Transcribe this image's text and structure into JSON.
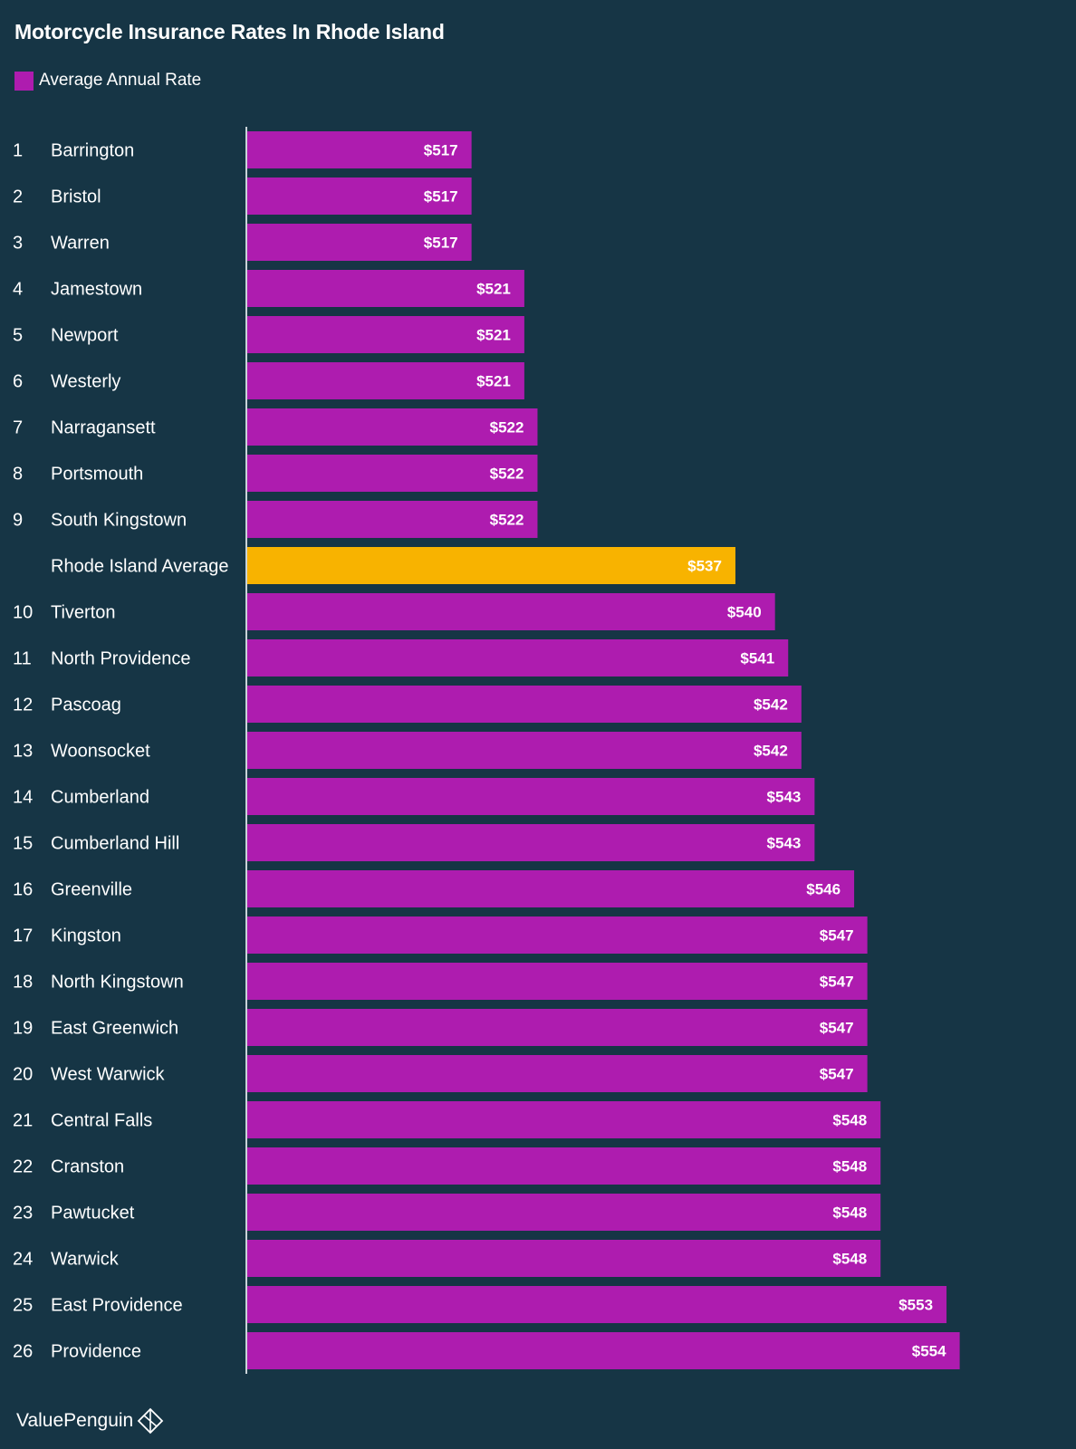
{
  "colors": {
    "background": "#163545",
    "bar": "#AE1CAF",
    "average_bar": "#F8B300",
    "text": "#FFFFFF",
    "axis": "#C9D3D8"
  },
  "legend": {
    "label": "Average Annual Rate"
  },
  "brand": {
    "name": "ValuePenguin",
    "icon": "penguin-diamond-icon"
  },
  "chart_data": {
    "type": "bar",
    "orientation": "horizontal",
    "title": "Motorcycle Insurance Rates In Rhode Island",
    "series_name": "Average Annual Rate",
    "xlim": [
      500,
      560
    ],
    "grid": false,
    "rows": [
      {
        "rank": "1",
        "city": "Barrington",
        "value": 517,
        "label": "$517",
        "highlight": false
      },
      {
        "rank": "2",
        "city": "Bristol",
        "value": 517,
        "label": "$517",
        "highlight": false
      },
      {
        "rank": "3",
        "city": "Warren",
        "value": 517,
        "label": "$517",
        "highlight": false
      },
      {
        "rank": "4",
        "city": "Jamestown",
        "value": 521,
        "label": "$521",
        "highlight": false
      },
      {
        "rank": "5",
        "city": "Newport",
        "value": 521,
        "label": "$521",
        "highlight": false
      },
      {
        "rank": "6",
        "city": "Westerly",
        "value": 521,
        "label": "$521",
        "highlight": false
      },
      {
        "rank": "7",
        "city": "Narragansett",
        "value": 522,
        "label": "$522",
        "highlight": false
      },
      {
        "rank": "8",
        "city": "Portsmouth",
        "value": 522,
        "label": "$522",
        "highlight": false
      },
      {
        "rank": "9",
        "city": "South Kingstown",
        "value": 522,
        "label": "$522",
        "highlight": false
      },
      {
        "rank": "",
        "city": "Rhode Island Average",
        "value": 537,
        "label": "$537",
        "highlight": true
      },
      {
        "rank": "10",
        "city": "Tiverton",
        "value": 540,
        "label": "$540",
        "highlight": false
      },
      {
        "rank": "11",
        "city": "North Providence",
        "value": 541,
        "label": "$541",
        "highlight": false
      },
      {
        "rank": "12",
        "city": "Pascoag",
        "value": 542,
        "label": "$542",
        "highlight": false
      },
      {
        "rank": "13",
        "city": "Woonsocket",
        "value": 542,
        "label": "$542",
        "highlight": false
      },
      {
        "rank": "14",
        "city": "Cumberland",
        "value": 543,
        "label": "$543",
        "highlight": false
      },
      {
        "rank": "15",
        "city": "Cumberland Hill",
        "value": 543,
        "label": "$543",
        "highlight": false
      },
      {
        "rank": "16",
        "city": "Greenville",
        "value": 546,
        "label": "$546",
        "highlight": false
      },
      {
        "rank": "17",
        "city": "Kingston",
        "value": 547,
        "label": "$547",
        "highlight": false
      },
      {
        "rank": "18",
        "city": "North Kingstown",
        "value": 547,
        "label": "$547",
        "highlight": false
      },
      {
        "rank": "19",
        "city": "East Greenwich",
        "value": 547,
        "label": "$547",
        "highlight": false
      },
      {
        "rank": "20",
        "city": "West Warwick",
        "value": 547,
        "label": "$547",
        "highlight": false
      },
      {
        "rank": "21",
        "city": "Central Falls",
        "value": 548,
        "label": "$548",
        "highlight": false
      },
      {
        "rank": "22",
        "city": "Cranston",
        "value": 548,
        "label": "$548",
        "highlight": false
      },
      {
        "rank": "23",
        "city": "Pawtucket",
        "value": 548,
        "label": "$548",
        "highlight": false
      },
      {
        "rank": "24",
        "city": "Warwick",
        "value": 548,
        "label": "$548",
        "highlight": false
      },
      {
        "rank": "25",
        "city": "East Providence",
        "value": 553,
        "label": "$553",
        "highlight": false
      },
      {
        "rank": "26",
        "city": "Providence",
        "value": 554,
        "label": "$554",
        "highlight": false
      }
    ]
  }
}
